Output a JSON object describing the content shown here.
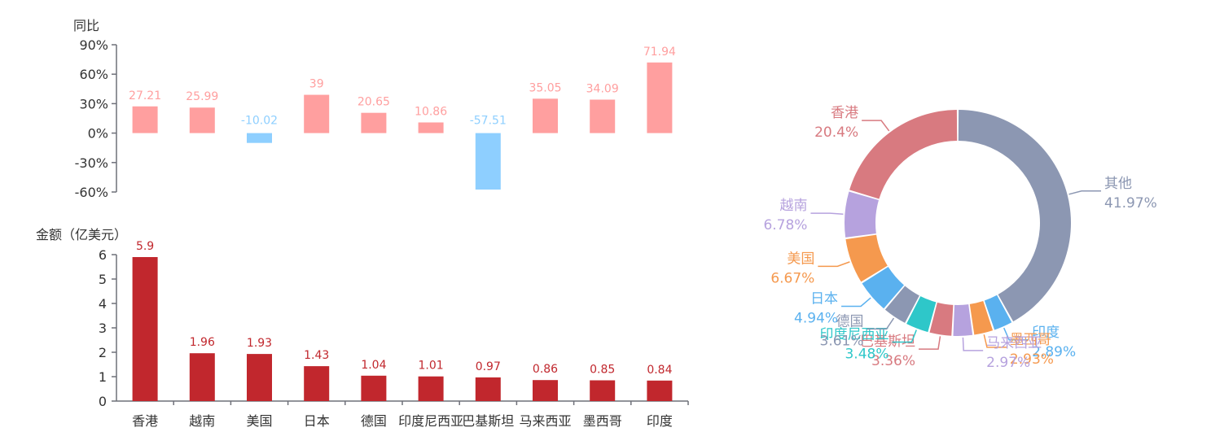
{
  "chart_data": [
    {
      "type": "bar",
      "ylabel": "同比",
      "categories": [
        "香港",
        "越南",
        "美国",
        "日本",
        "德国",
        "印度尼西亚",
        "巴基斯坦",
        "马来西亚",
        "墨西哥",
        "印度"
      ],
      "values": [
        27.21,
        25.99,
        -10.02,
        39,
        20.65,
        10.86,
        -57.51,
        35.05,
        34.09,
        71.94
      ],
      "value_labels": [
        "27.21",
        "25.99",
        "-10.02",
        "39",
        "20.65",
        "10.86",
        "-57.51",
        "35.05",
        "34.09",
        "71.94"
      ],
      "yticks": [
        "90%",
        "60%",
        "30%",
        "0%",
        "-30%",
        "-60%"
      ],
      "ylim": [
        -60,
        90
      ],
      "colors": {
        "positive": "#ff9f9f",
        "negative": "#8ecfff"
      }
    },
    {
      "type": "bar",
      "ylabel": "金额（亿美元）",
      "categories": [
        "香港",
        "越南",
        "美国",
        "日本",
        "德国",
        "印度尼西亚",
        "巴基斯坦",
        "马来西亚",
        "墨西哥",
        "印度"
      ],
      "values": [
        5.9,
        1.96,
        1.93,
        1.43,
        1.04,
        1.01,
        0.97,
        0.86,
        0.85,
        0.84
      ],
      "value_labels": [
        "5.9",
        "1.96",
        "1.93",
        "1.43",
        "1.04",
        "1.01",
        "0.97",
        "0.86",
        "0.85",
        "0.84"
      ],
      "yticks": [
        "6",
        "5",
        "4",
        "3",
        "2",
        "1",
        "0"
      ],
      "ylim": [
        0,
        6
      ],
      "colors": {
        "bar": "#c1272d",
        "label": "#c1272d"
      }
    },
    {
      "type": "pie",
      "donut": true,
      "slices": [
        {
          "name": "其他",
          "value": 41.97,
          "label": "41.97%",
          "color": "#8c97b2"
        },
        {
          "name": "印度",
          "value": 2.89,
          "label": "2.89%",
          "color": "#5ab1ef"
        },
        {
          "name": "墨西哥",
          "value": 2.93,
          "label": "2.93%",
          "color": "#f5994e"
        },
        {
          "name": "马来西亚",
          "value": 2.97,
          "label": "2.97%",
          "color": "#b6a2de"
        },
        {
          "name": "巴基斯坦",
          "value": 3.36,
          "label": "3.36%",
          "color": "#d87a80"
        },
        {
          "name": "印度尼西亚",
          "value": 3.48,
          "label": "3.48%",
          "color": "#2ec7c9"
        },
        {
          "name": "德国",
          "value": 3.61,
          "label": "3.61%",
          "color": "#8c97b2"
        },
        {
          "name": "日本",
          "value": 4.94,
          "label": "4.94%",
          "color": "#5ab1ef"
        },
        {
          "name": "美国",
          "value": 6.67,
          "label": "6.67%",
          "color": "#f5994e"
        },
        {
          "name": "越南",
          "value": 6.78,
          "label": "6.78%",
          "color": "#b6a2de"
        },
        {
          "name": "香港",
          "value": 20.4,
          "label": "20.4%",
          "color": "#d87a80"
        }
      ]
    }
  ]
}
